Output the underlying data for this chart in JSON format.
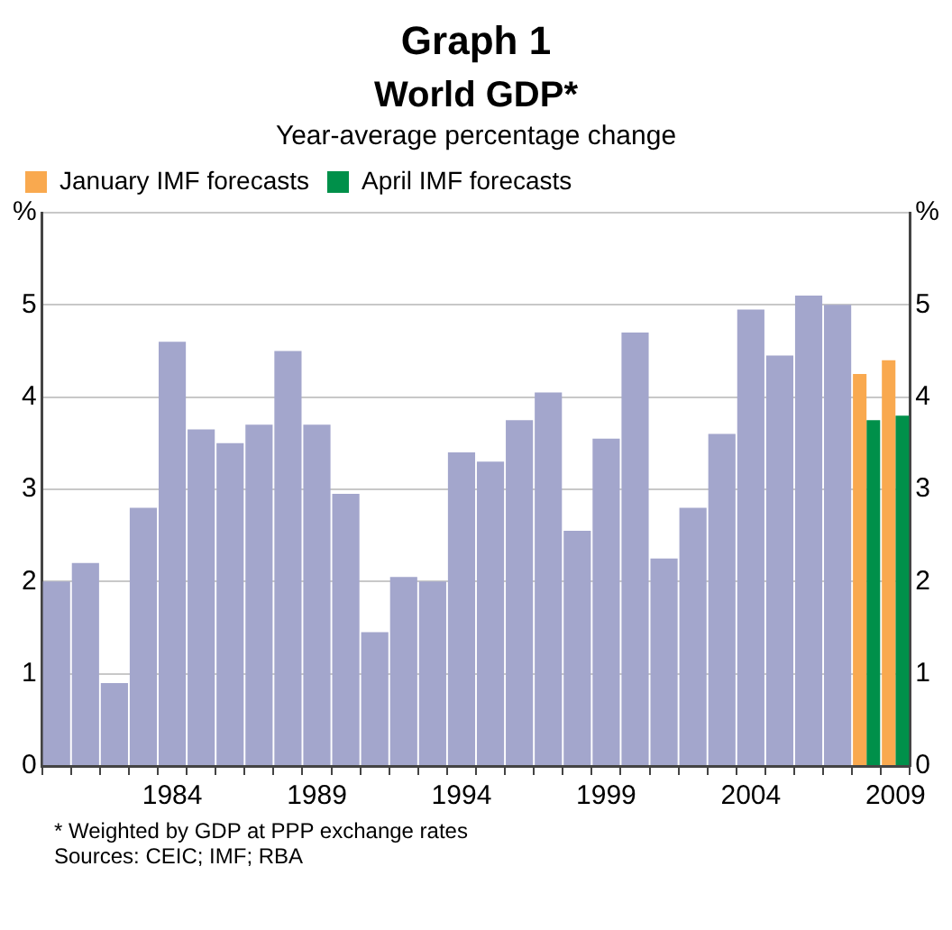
{
  "chart_data": {
    "type": "bar",
    "title": "Graph 1",
    "subtitle": "World GDP*",
    "categories": [
      null,
      null,
      null,
      null,
      "1984",
      null,
      null,
      null,
      null,
      "1989",
      null,
      null,
      null,
      null,
      "1994",
      null,
      null,
      null,
      null,
      "1999",
      null,
      null,
      null,
      null,
      "2004",
      null,
      null,
      null,
      null,
      "2009"
    ],
    "series": [
      {
        "color": "#a3a6cc",
        "values": [
          2.0,
          2.2,
          0.9,
          2.8,
          4.6,
          3.65,
          3.5,
          3.7,
          4.5,
          3.7,
          2.95,
          1.45,
          2.05,
          2.0,
          3.4,
          3.3,
          3.75,
          4.05,
          2.55,
          3.55,
          4.7,
          2.25,
          2.8,
          3.6,
          4.95,
          4.45,
          5.1,
          5.0,
          null,
          null
        ]
      },
      {
        "name": "January IMF forecasts",
        "color": "#f9a94f",
        "values": [
          null,
          null,
          null,
          null,
          null,
          null,
          null,
          null,
          null,
          null,
          null,
          null,
          null,
          null,
          null,
          null,
          null,
          null,
          null,
          null,
          null,
          null,
          null,
          null,
          null,
          null,
          null,
          null,
          4.25,
          4.4
        ]
      },
      {
        "name": "April IMF forecasts",
        "color": "#00904a",
        "values": [
          null,
          null,
          null,
          null,
          null,
          null,
          null,
          null,
          null,
          null,
          null,
          null,
          null,
          null,
          null,
          null,
          null,
          null,
          null,
          null,
          null,
          null,
          null,
          null,
          null,
          null,
          null,
          null,
          3.75,
          3.8
        ]
      }
    ],
    "ylim": [
      0,
      6
    ],
    "yticks": [
      0,
      1,
      2,
      3,
      4,
      5,
      {
        "value": 6,
        "label": "%"
      }
    ],
    "y2lim": [
      0,
      6
    ],
    "y2ticks": [
      0,
      1,
      2,
      3,
      4,
      5,
      {
        "value": 6,
        "label": "%"
      }
    ],
    "grid": "y",
    "legend": "top left",
    "annotations": [
      "Year-average percentage change",
      "*  Weighted by GDP at PPP exchange rates",
      "Sources: CEIC; IMF; RBA"
    ]
  }
}
